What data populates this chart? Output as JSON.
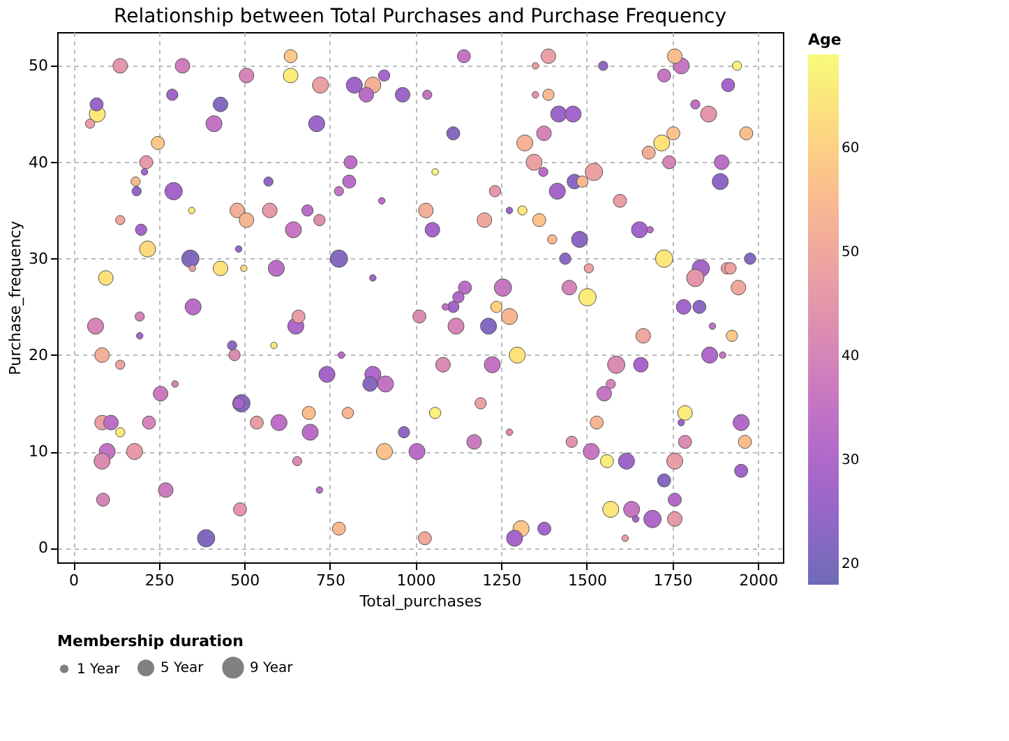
{
  "chart_data": {
    "type": "bubble",
    "title": "Relationship between Total Purchases and Purchase Frequency",
    "xlabel": "Total_purchases",
    "ylabel": "Purchase_frequency",
    "clabel": "Age",
    "legend_title": "Membership duration",
    "x": [
      137,
      319,
      506,
      68,
      70,
      49,
      289,
      430,
      411,
      247,
      213,
      208,
      182,
      185,
      293,
      137,
      346,
      198,
      217,
      342,
      348,
      95,
      430,
      498,
      483,
      479,
      506,
      574,
      570,
      593,
      643,
      350,
      635,
      635,
      722,
      821,
      875,
      856,
      908,
      962,
      1034,
      1141,
      1350,
      1350,
      711,
      1110,
      1319,
      1375,
      1346,
      810,
      806,
      776,
      901,
      1057,
      1232,
      684,
      719,
      1030,
      1049,
      1201,
      1274,
      1312,
      1361,
      776,
      875,
      1144,
      1125,
      1255,
      1087,
      1110,
      1236,
      1388,
      1548,
      1757,
      1776,
      1939,
      1726,
      1913,
      1388,
      1418,
      1460,
      1817,
      1856,
      1753,
      1719,
      1681,
      1966,
      1741,
      1894,
      1890,
      1373,
      1521,
      1464,
      1487,
      1414,
      1597,
      1654,
      1685,
      1399,
      1479,
      1437,
      1726,
      1977,
      1506,
      1833,
      1817,
      1909,
      1920,
      1449,
      1943,
      1502,
      1783,
      1829,
      65,
      194,
      194,
      84,
      137,
      464,
      471,
      586,
      297,
      255,
      84,
      110,
      221,
      137,
      99,
      84,
      179,
      483,
      491,
      536,
      601,
      650,
      87,
      270,
      487,
      388,
      658,
      1011,
      1274,
      1118,
      1213,
      783,
      1297,
      1080,
      1224,
      741,
      875,
      867,
      912,
      1190,
      688,
      802,
      1057,
      692,
      966,
      1171,
      1274,
      909,
      1004,
      654,
      719,
      776,
      1027,
      1308,
      1289,
      1376,
      1867,
      1924,
      1665,
      1859,
      1897,
      1586,
      1658,
      1570,
      1551,
      1787,
      1776,
      1951,
      1529,
      1456,
      1787,
      1962,
      1513,
      1559,
      1616,
      1757,
      1951,
      1726,
      1757,
      1570,
      1631,
      1643,
      1692,
      1757,
      1612
    ],
    "values": [
      50,
      50,
      49,
      46,
      45,
      44,
      47,
      46,
      44,
      42,
      40,
      39,
      38,
      37,
      37,
      34,
      35,
      33,
      31,
      30,
      29,
      28,
      29,
      29,
      31,
      35,
      34,
      35,
      38,
      29,
      33,
      25,
      51,
      49,
      48,
      48,
      48,
      47,
      49,
      47,
      47,
      51,
      50,
      47,
      44,
      43,
      42,
      43,
      40,
      40,
      38,
      37,
      36,
      39,
      37,
      35,
      34,
      35,
      33,
      34,
      35,
      35,
      34,
      30,
      28,
      27,
      26,
      27,
      25,
      25,
      25,
      51,
      50,
      51,
      50,
      50,
      49,
      48,
      47,
      45,
      45,
      46,
      45,
      43,
      42,
      41,
      43,
      40,
      40,
      38,
      39,
      39,
      38,
      38,
      37,
      36,
      33,
      33,
      32,
      32,
      30,
      30,
      30,
      29,
      29,
      28,
      29,
      29,
      27,
      27,
      26,
      25,
      25,
      23,
      24,
      22,
      20,
      19,
      21,
      20,
      21,
      17,
      16,
      13,
      13,
      13,
      12,
      10,
      9,
      10,
      15,
      15,
      13,
      13,
      23,
      5,
      6,
      4,
      1,
      24,
      24,
      24,
      23,
      23,
      20,
      20,
      19,
      19,
      18,
      18,
      17,
      17,
      15,
      14,
      14,
      14,
      12,
      12,
      11,
      12,
      10,
      10,
      9,
      6,
      2,
      1,
      2,
      1,
      2,
      23,
      22,
      22,
      20,
      20,
      19,
      19,
      17,
      16,
      14,
      13,
      13,
      13,
      11,
      11,
      11,
      10,
      9,
      9,
      9,
      8,
      7,
      5,
      4,
      4,
      3,
      3,
      3,
      1
    ],
    "sizes": [
      5,
      5,
      5,
      4,
      6,
      2,
      3,
      5,
      6,
      4,
      4,
      1,
      2,
      2,
      7,
      2,
      1,
      3,
      6,
      7,
      1,
      5,
      5,
      1,
      1,
      5,
      5,
      5,
      2,
      6,
      6,
      6,
      4,
      5,
      6,
      6,
      6,
      5,
      3,
      5,
      2,
      4,
      1,
      1,
      6,
      4,
      6,
      5,
      6,
      4,
      4,
      2,
      1,
      1,
      3,
      3,
      3,
      5,
      5,
      5,
      1,
      2,
      4,
      7,
      1,
      4,
      3,
      7,
      1,
      3,
      3,
      5,
      2,
      5,
      6,
      2,
      4,
      4,
      3,
      6,
      6,
      2,
      6,
      4,
      6,
      4,
      4,
      4,
      5,
      6,
      2,
      7,
      5,
      3,
      6,
      4,
      6,
      1,
      2,
      6,
      3,
      7,
      3,
      2,
      7,
      7,
      3,
      3,
      5,
      5,
      7,
      5,
      4,
      6,
      2,
      1,
      5,
      2,
      2,
      3,
      1,
      1,
      5,
      5,
      5,
      4,
      2,
      6,
      6,
      6,
      3,
      7,
      4,
      6,
      6,
      4,
      5,
      4,
      7,
      4,
      4,
      6,
      6,
      6,
      1,
      6,
      5,
      6,
      6,
      6,
      5,
      6,
      3,
      4,
      3,
      3,
      6,
      3,
      5,
      1,
      6,
      6,
      2,
      1,
      4,
      4,
      6,
      6,
      4,
      1,
      3,
      5,
      6,
      1,
      7,
      5,
      2,
      5,
      5,
      1,
      6,
      4,
      3,
      4,
      4,
      6,
      4,
      6,
      6,
      4,
      4,
      4,
      6,
      6,
      1,
      7,
      5,
      1
    ],
    "cvalues": [
      45,
      38,
      40,
      25,
      65,
      47,
      27,
      22,
      35,
      58,
      46,
      28,
      55,
      24,
      28,
      50,
      66,
      28,
      62,
      21,
      47,
      64,
      64,
      62,
      25,
      52,
      54,
      46,
      24,
      33,
      36,
      33,
      58,
      66,
      48,
      27,
      52,
      33,
      28,
      26,
      35,
      35,
      47,
      45,
      26,
      22,
      53,
      40,
      48,
      34,
      33,
      35,
      33,
      68,
      46,
      33,
      43,
      52,
      28,
      50,
      26,
      65,
      57,
      22,
      27,
      33,
      31,
      36,
      35,
      27,
      60,
      48,
      24,
      56,
      36,
      67,
      36,
      28,
      55,
      26,
      28,
      34,
      45,
      57,
      64,
      52,
      56,
      40,
      33,
      23,
      33,
      48,
      23,
      55,
      28,
      47,
      28,
      33,
      55,
      23,
      23,
      65,
      22,
      48,
      28,
      45,
      47,
      49,
      40,
      50,
      66,
      28,
      23,
      40,
      40,
      28,
      52,
      49,
      23,
      42,
      65,
      40,
      37,
      48,
      33,
      40,
      66,
      35,
      42,
      46,
      28,
      22,
      47,
      34,
      30,
      40,
      37,
      45,
      21,
      47,
      42,
      54,
      40,
      22,
      32,
      64,
      42,
      35,
      28,
      30,
      22,
      35,
      48,
      56,
      54,
      67,
      33,
      24,
      37,
      42,
      57,
      33,
      42,
      33,
      55,
      50,
      58,
      28,
      28,
      35,
      58,
      50,
      30,
      35,
      42,
      29,
      40,
      36,
      66,
      26,
      31,
      54,
      44,
      42,
      56,
      36,
      66,
      27,
      47,
      27,
      22,
      31,
      65,
      36,
      28,
      30,
      46,
      47
    ],
    "size_legend": [
      {
        "value": 1,
        "label": "1 Year"
      },
      {
        "value": 5,
        "label": "5 Year"
      },
      {
        "value": 9,
        "label": "9 Year"
      }
    ],
    "clim": [
      18,
      69
    ],
    "cticks": [
      20,
      30,
      40,
      50,
      60
    ],
    "xlim": [
      -47,
      2073
    ],
    "ylim": [
      -1.5,
      53.5
    ],
    "xticks": [
      0,
      250,
      500,
      750,
      1000,
      1250,
      1500,
      1750,
      2000
    ],
    "yticks": [
      0,
      10,
      20,
      30,
      40,
      50
    ],
    "grid": true
  }
}
